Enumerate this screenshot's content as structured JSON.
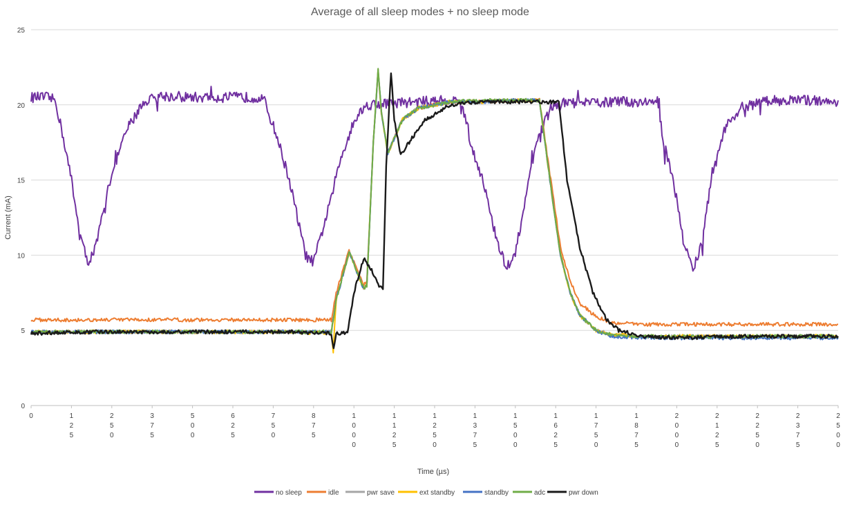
{
  "chart_data": {
    "type": "line",
    "title": "Average of all sleep modes + no sleep mode",
    "xlabel": "Time (µs)",
    "ylabel": "Current (mA)",
    "xlim": [
      0,
      2500
    ],
    "ylim": [
      0,
      25
    ],
    "x_ticks": [
      "0",
      "125",
      "250",
      "375",
      "500",
      "625",
      "750",
      "875",
      "1000",
      "1125",
      "1250",
      "1375",
      "1500",
      "1625",
      "1750",
      "1875",
      "2000",
      "2125",
      "2250",
      "2375",
      "2500"
    ],
    "y_ticks": [
      "0",
      "5",
      "10",
      "15",
      "20",
      "25"
    ],
    "grid": "horizontal",
    "legend_position": "bottom",
    "series": [
      {
        "name": "no sleep",
        "color": "#7030a0",
        "points": [
          [
            0,
            20.5
          ],
          [
            50,
            20.5
          ],
          [
            75,
            20.3
          ],
          [
            100,
            17.8
          ],
          [
            125,
            15
          ],
          [
            150,
            11.5
          ],
          [
            175,
            9.5
          ],
          [
            200,
            10.5
          ],
          [
            250,
            15.5
          ],
          [
            300,
            18.5
          ],
          [
            350,
            20.2
          ],
          [
            400,
            20.6
          ],
          [
            500,
            20.5
          ],
          [
            600,
            20.5
          ],
          [
            700,
            20.5
          ],
          [
            720,
            20.4
          ],
          [
            760,
            18
          ],
          [
            800,
            15
          ],
          [
            825,
            12.5
          ],
          [
            850,
            10
          ],
          [
            875,
            9.5
          ],
          [
            920,
            13
          ],
          [
            960,
            16.5
          ],
          [
            1000,
            19
          ],
          [
            1040,
            20
          ],
          [
            1100,
            20.1
          ],
          [
            1200,
            20.2
          ],
          [
            1300,
            20.3
          ],
          [
            1335,
            20.2
          ],
          [
            1360,
            17.5
          ],
          [
            1400,
            15
          ],
          [
            1430,
            12
          ],
          [
            1450,
            10.5
          ],
          [
            1475,
            9
          ],
          [
            1500,
            10
          ],
          [
            1540,
            15
          ],
          [
            1575,
            18
          ],
          [
            1610,
            19.8
          ],
          [
            1650,
            20.1
          ],
          [
            1700,
            20.1
          ],
          [
            1800,
            20.2
          ],
          [
            1900,
            20.2
          ],
          [
            1940,
            20.2
          ],
          [
            1960,
            17.5
          ],
          [
            1990,
            15
          ],
          [
            2020,
            11
          ],
          [
            2050,
            9
          ],
          [
            2080,
            11
          ],
          [
            2110,
            15.5
          ],
          [
            2150,
            18.5
          ],
          [
            2200,
            19.8
          ],
          [
            2250,
            20.1
          ],
          [
            2300,
            20.3
          ],
          [
            2400,
            20.3
          ],
          [
            2500,
            20.3
          ]
        ]
      },
      {
        "name": "idle",
        "color": "#ed7d31",
        "points": [
          [
            0,
            5.7
          ],
          [
            200,
            5.7
          ],
          [
            400,
            5.7
          ],
          [
            600,
            5.7
          ],
          [
            800,
            5.7
          ],
          [
            930,
            5.7
          ],
          [
            945,
            7.5
          ],
          [
            985,
            10.3
          ],
          [
            1030,
            8
          ],
          [
            1040,
            8.2
          ],
          [
            1060,
            17.5
          ],
          [
            1075,
            22.3
          ],
          [
            1085,
            19.5
          ],
          [
            1105,
            16.8
          ],
          [
            1150,
            19
          ],
          [
            1200,
            19.8
          ],
          [
            1300,
            20.2
          ],
          [
            1400,
            20.2
          ],
          [
            1500,
            20.3
          ],
          [
            1575,
            20.3
          ],
          [
            1610,
            15
          ],
          [
            1640,
            10.5
          ],
          [
            1670,
            8.3
          ],
          [
            1700,
            6.8
          ],
          [
            1750,
            5.9
          ],
          [
            1800,
            5.5
          ],
          [
            1900,
            5.4
          ],
          [
            2000,
            5.4
          ],
          [
            2200,
            5.4
          ],
          [
            2400,
            5.4
          ],
          [
            2500,
            5.4
          ]
        ]
      },
      {
        "name": "pwr save",
        "color": "#a5a5a5",
        "points": [
          [
            0,
            4.9
          ],
          [
            200,
            4.9
          ],
          [
            400,
            4.9
          ],
          [
            600,
            4.9
          ],
          [
            800,
            4.9
          ],
          [
            930,
            4.9
          ],
          [
            945,
            7
          ],
          [
            985,
            10.2
          ],
          [
            1030,
            7.8
          ],
          [
            1040,
            8
          ],
          [
            1060,
            17.5
          ],
          [
            1075,
            22.3
          ],
          [
            1085,
            19.5
          ],
          [
            1105,
            16.8
          ],
          [
            1150,
            19
          ],
          [
            1200,
            19.8
          ],
          [
            1300,
            20.2
          ],
          [
            1400,
            20.2
          ],
          [
            1500,
            20.3
          ],
          [
            1575,
            20.3
          ],
          [
            1610,
            14.5
          ],
          [
            1640,
            10
          ],
          [
            1670,
            7.5
          ],
          [
            1700,
            6
          ],
          [
            1750,
            5
          ],
          [
            1800,
            4.7
          ],
          [
            1900,
            4.6
          ],
          [
            2000,
            4.6
          ],
          [
            2200,
            4.6
          ],
          [
            2400,
            4.6
          ],
          [
            2500,
            4.6
          ]
        ]
      },
      {
        "name": "ext standby",
        "color": "#ffc000",
        "points": [
          [
            0,
            4.9
          ],
          [
            200,
            4.9
          ],
          [
            400,
            4.9
          ],
          [
            600,
            4.9
          ],
          [
            800,
            4.9
          ],
          [
            930,
            4.8
          ],
          [
            936,
            3.6
          ],
          [
            945,
            7
          ],
          [
            985,
            10.2
          ],
          [
            1030,
            7.8
          ],
          [
            1040,
            8
          ],
          [
            1060,
            17.5
          ],
          [
            1075,
            22.3
          ],
          [
            1085,
            19.5
          ],
          [
            1105,
            16.8
          ],
          [
            1150,
            19
          ],
          [
            1200,
            19.8
          ],
          [
            1300,
            20.2
          ],
          [
            1400,
            20.2
          ],
          [
            1500,
            20.3
          ],
          [
            1575,
            20.3
          ],
          [
            1610,
            14.5
          ],
          [
            1640,
            10
          ],
          [
            1670,
            7.5
          ],
          [
            1700,
            6
          ],
          [
            1750,
            5
          ],
          [
            1800,
            4.7
          ],
          [
            1900,
            4.6
          ],
          [
            2000,
            4.6
          ],
          [
            2200,
            4.6
          ],
          [
            2400,
            4.6
          ],
          [
            2500,
            4.6
          ]
        ]
      },
      {
        "name": "standby",
        "color": "#4472c4",
        "points": [
          [
            0,
            4.9
          ],
          [
            200,
            4.9
          ],
          [
            400,
            4.9
          ],
          [
            600,
            4.9
          ],
          [
            800,
            4.9
          ],
          [
            930,
            4.9
          ],
          [
            945,
            7
          ],
          [
            985,
            10.2
          ],
          [
            1030,
            7.8
          ],
          [
            1040,
            8
          ],
          [
            1060,
            17.5
          ],
          [
            1075,
            22.3
          ],
          [
            1085,
            19.5
          ],
          [
            1105,
            16.8
          ],
          [
            1150,
            19
          ],
          [
            1200,
            19.8
          ],
          [
            1300,
            20.2
          ],
          [
            1400,
            20.2
          ],
          [
            1500,
            20.3
          ],
          [
            1575,
            20.3
          ],
          [
            1610,
            14.5
          ],
          [
            1640,
            10
          ],
          [
            1670,
            7.5
          ],
          [
            1700,
            6
          ],
          [
            1750,
            5
          ],
          [
            1800,
            4.6
          ],
          [
            1900,
            4.5
          ],
          [
            2000,
            4.5
          ],
          [
            2200,
            4.5
          ],
          [
            2400,
            4.5
          ],
          [
            2500,
            4.5
          ]
        ]
      },
      {
        "name": "adc",
        "color": "#70ad47",
        "points": [
          [
            0,
            4.9
          ],
          [
            200,
            4.9
          ],
          [
            400,
            4.9
          ],
          [
            600,
            4.9
          ],
          [
            800,
            4.9
          ],
          [
            930,
            4.9
          ],
          [
            945,
            7
          ],
          [
            985,
            10.2
          ],
          [
            1030,
            7.8
          ],
          [
            1040,
            8
          ],
          [
            1060,
            17.5
          ],
          [
            1075,
            22.3
          ],
          [
            1085,
            19.5
          ],
          [
            1105,
            16.8
          ],
          [
            1150,
            19
          ],
          [
            1200,
            19.8
          ],
          [
            1300,
            20.2
          ],
          [
            1400,
            20.3
          ],
          [
            1500,
            20.3
          ],
          [
            1575,
            20.3
          ],
          [
            1610,
            14.5
          ],
          [
            1640,
            10
          ],
          [
            1670,
            7.5
          ],
          [
            1700,
            6
          ],
          [
            1750,
            5
          ],
          [
            1800,
            4.7
          ],
          [
            1900,
            4.6
          ],
          [
            2000,
            4.6
          ],
          [
            2200,
            4.6
          ],
          [
            2400,
            4.6
          ],
          [
            2500,
            4.6
          ]
        ]
      },
      {
        "name": "pwr down",
        "color": "#1a1a1a",
        "points": [
          [
            0,
            4.8
          ],
          [
            200,
            4.9
          ],
          [
            400,
            4.9
          ],
          [
            600,
            4.9
          ],
          [
            800,
            4.9
          ],
          [
            930,
            4.8
          ],
          [
            937,
            3.8
          ],
          [
            945,
            4.8
          ],
          [
            980,
            4.8
          ],
          [
            1000,
            7.5
          ],
          [
            1030,
            9.8
          ],
          [
            1055,
            9
          ],
          [
            1075,
            8
          ],
          [
            1090,
            7.8
          ],
          [
            1100,
            16
          ],
          [
            1115,
            22.2
          ],
          [
            1125,
            19
          ],
          [
            1145,
            16.7
          ],
          [
            1180,
            17.8
          ],
          [
            1220,
            19
          ],
          [
            1300,
            20
          ],
          [
            1400,
            20.2
          ],
          [
            1500,
            20.2
          ],
          [
            1600,
            20.2
          ],
          [
            1635,
            20.2
          ],
          [
            1660,
            15
          ],
          [
            1700,
            10.5
          ],
          [
            1740,
            7.5
          ],
          [
            1780,
            5.8
          ],
          [
            1820,
            5
          ],
          [
            1900,
            4.6
          ],
          [
            2000,
            4.5
          ],
          [
            2200,
            4.6
          ],
          [
            2400,
            4.6
          ],
          [
            2500,
            4.6
          ]
        ]
      }
    ]
  }
}
